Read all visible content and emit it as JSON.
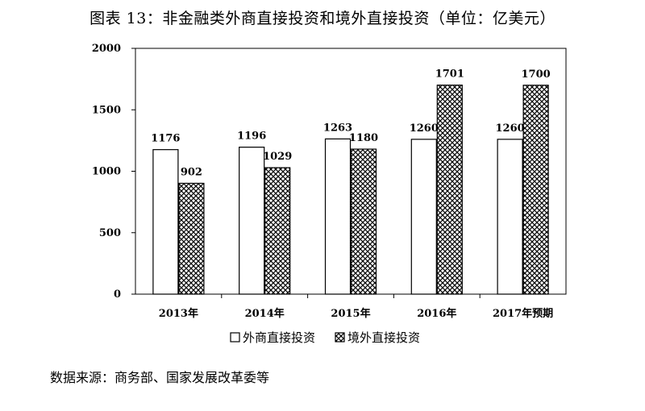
{
  "title": "图表 13：非金融类外商直接投资和境外直接投资（单位：亿美元）",
  "source": "数据来源：商务部、国家发展改革委等",
  "chart_data": {
    "type": "bar",
    "categories": [
      "2013年",
      "2014年",
      "2015年",
      "2016年",
      "2017年预期"
    ],
    "series": [
      {
        "name": "外商直接投资",
        "values": [
          1176,
          1196,
          1263,
          1260,
          1260
        ],
        "pattern": "white"
      },
      {
        "name": "境外直接投资",
        "values": [
          902,
          1029,
          1180,
          1701,
          1700
        ],
        "pattern": "crosshatch"
      }
    ],
    "data_labels": [
      [
        "1176",
        "1196",
        "1263",
        "1260",
        "1260"
      ],
      [
        "902",
        "1029",
        "1180",
        "1701",
        "1700"
      ]
    ],
    "ylim": [
      0,
      2000
    ],
    "yticks": [
      0,
      500,
      1000,
      1500,
      2000
    ],
    "grid": false,
    "legend_position": "bottom"
  }
}
